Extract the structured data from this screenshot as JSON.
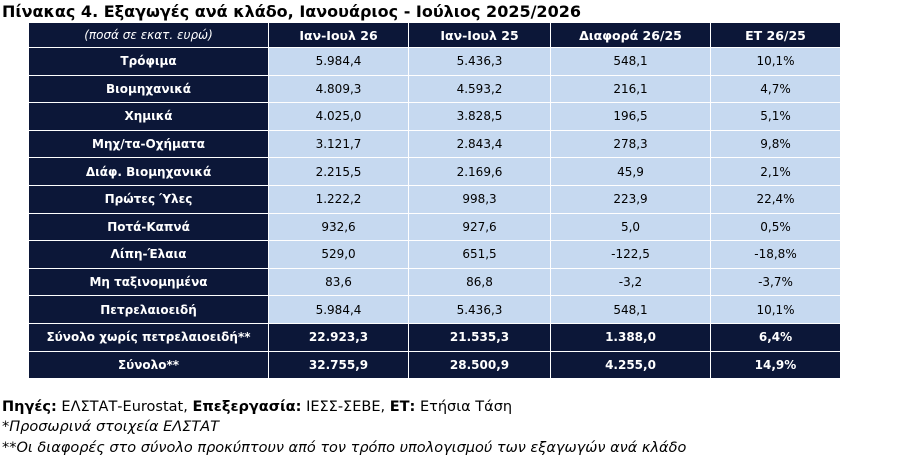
{
  "title": "Πίνακας 4. Εξαγωγές ανά κλάδο, Ιανουάριος - Ιούλιος 2025/2026",
  "table": {
    "header": [
      "(ποσά σε εκατ. ευρώ)",
      "Ιαν-Ιουλ 26",
      "Ιαν-Ιουλ 25",
      "Διαφορά 26/25",
      "ΕΤ 26/25"
    ],
    "rows": [
      [
        "Τρόφιμα",
        "5.984,4",
        "5.436,3",
        "548,1",
        "10,1%"
      ],
      [
        "Βιομηχανικά",
        "4.809,3",
        "4.593,2",
        "216,1",
        "4,7%"
      ],
      [
        "Χημικά",
        "4.025,0",
        "3.828,5",
        "196,5",
        "5,1%"
      ],
      [
        "Μηχ/τα-Οχήματα",
        "3.121,7",
        "2.843,4",
        "278,3",
        "9,8%"
      ],
      [
        "Διάφ. Βιομηχανικά",
        "2.215,5",
        "2.169,6",
        "45,9",
        "2,1%"
      ],
      [
        "Πρώτες Ύλες",
        "1.222,2",
        "998,3",
        "223,9",
        "22,4%"
      ],
      [
        "Ποτά-Καπνά",
        "932,6",
        "927,6",
        "5,0",
        "0,5%"
      ],
      [
        "Λίπη-Έλαια",
        "529,0",
        "651,5",
        "-122,5",
        "-18,8%"
      ],
      [
        "Μη ταξινομημένα",
        "83,6",
        "86,8",
        "-3,2",
        "-3,7%"
      ],
      [
        "Πετρελαιοειδή",
        "5.984,4",
        "5.436,3",
        "548,1",
        "10,1%"
      ],
      [
        "Σύνολο χωρίς πετρελαιοειδή**",
        "22.923,3",
        "21.535,3",
        "1.388,0",
        "6,4%"
      ],
      [
        "Σύνολο**",
        "32.755,9",
        "28.500,9",
        "4.255,0",
        "14,9%"
      ]
    ]
  },
  "source": {
    "label1": "Πηγές:",
    "text1": "ΕΛΣΤΑΤ-Eurostat,",
    "label2": "Επεξεργασία:",
    "text2": "ΙΕΣΣ-ΣΕΒΕ,",
    "label3": "ΕΤ:",
    "text3": "Ετήσια Τάση"
  },
  "notes": [
    "*Προσωρινά στοιχεία ΕΛΣΤΑΤ",
    "**Οι διαφορές στο σύνολο προκύπτουν από τον τρόπο υπολογισμού των εξαγωγών ανά κλάδο"
  ]
}
